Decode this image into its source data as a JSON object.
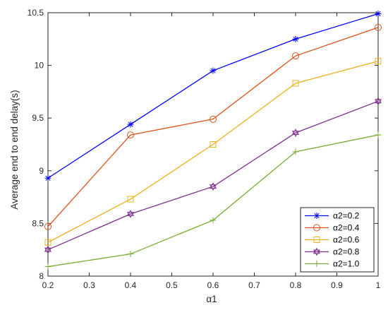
{
  "chart_data": {
    "type": "line",
    "title": "",
    "xlabel": "α1",
    "ylabel": "Average end to end delay(s)",
    "x": [
      0.2,
      0.4,
      0.6,
      0.8,
      1.0
    ],
    "xlim": [
      0.2,
      1.0
    ],
    "ylim": [
      8,
      10.5
    ],
    "xticks": [
      "0.2",
      "0.3",
      "0.4",
      "0.5",
      "0.6",
      "0.7",
      "0.8",
      "0.9",
      "1"
    ],
    "yticks": [
      "8",
      "8.5",
      "9",
      "9.5",
      "10",
      "10.5"
    ],
    "grid": false,
    "legend_position": "lower-right",
    "series": [
      {
        "name": "α2=0.2",
        "color": "#0000ff",
        "marker": "asterisk",
        "values": [
          8.93,
          9.44,
          9.95,
          10.25,
          10.49
        ]
      },
      {
        "name": "α2=0.4",
        "color": "#d95319",
        "marker": "circle",
        "values": [
          8.47,
          9.34,
          9.49,
          10.09,
          10.36
        ]
      },
      {
        "name": "α2=0.6",
        "color": "#edb120",
        "marker": "square",
        "values": [
          8.32,
          8.73,
          9.25,
          9.83,
          10.04
        ]
      },
      {
        "name": "α2=0.8",
        "color": "#7e2f8e",
        "marker": "hexagram",
        "values": [
          8.25,
          8.59,
          8.85,
          9.36,
          9.66
        ]
      },
      {
        "name": "α2=1.0",
        "color": "#77ac30",
        "marker": "plus",
        "values": [
          8.09,
          8.21,
          8.53,
          9.18,
          9.34
        ]
      }
    ]
  }
}
